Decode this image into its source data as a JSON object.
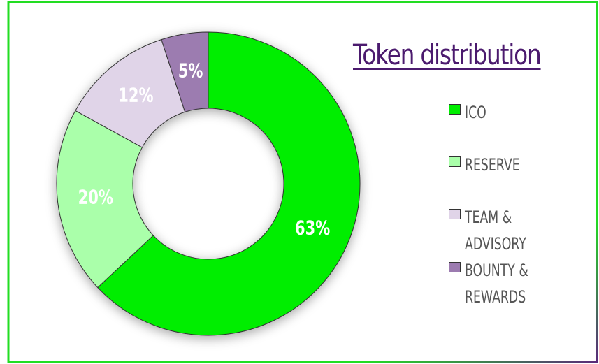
{
  "chart_data": {
    "type": "donut",
    "title": "Token distribution",
    "categories": [
      "ICO",
      "RESERVE",
      "TEAM & ADVISORY",
      "BOUNTY & REWARDS"
    ],
    "values": [
      63,
      20,
      12,
      5
    ],
    "value_labels": [
      "63%",
      "20%",
      "12%",
      "5%"
    ],
    "colors": [
      "#00ee00",
      "#aaffaa",
      "#e0d4e8",
      "#9c7bb0"
    ]
  }
}
